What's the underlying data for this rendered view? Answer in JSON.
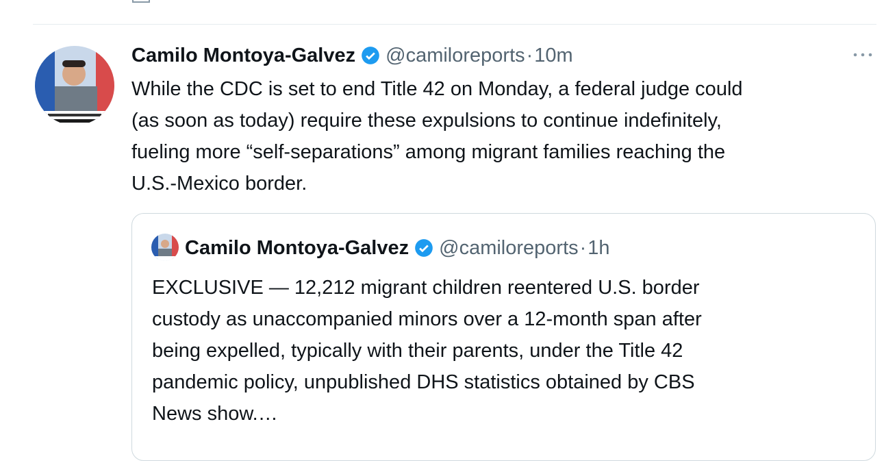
{
  "tweet": {
    "author": "Camilo Montoya-Galvez",
    "handle": "@camiloreports",
    "separator": "·",
    "time": "10m",
    "text_lines": [
      "While the CDC is set to end Title 42 on Monday, a federal judge could",
      "(as soon as today) require these expulsions to continue indefinitely,",
      "fueling more “self-separations” among migrant families reaching the",
      "U.S.-Mexico border."
    ],
    "quoted": {
      "author": "Camilo Montoya-Galvez",
      "handle": "@camiloreports",
      "separator": "·",
      "time": "1h",
      "text_lines": [
        "EXCLUSIVE — 12,212 migrant children reentered U.S. border",
        "custody as unaccompanied minors over a 12-month span after",
        "being expelled, typically with their parents, under the Title 42",
        "pandemic policy, unpublished DHS statistics obtained by CBS",
        "News show.…"
      ]
    }
  }
}
